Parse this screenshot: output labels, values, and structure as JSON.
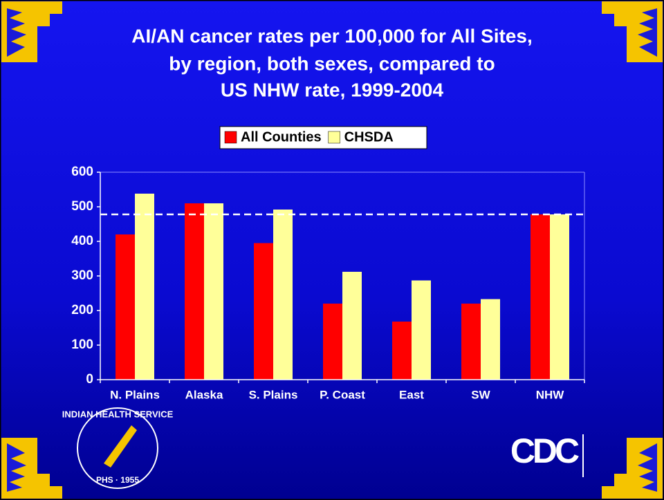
{
  "chart_data": {
    "type": "bar",
    "title": [
      "AI/AN cancer rates per 100,000 for All Sites,",
      "by region, both sexes, compared to",
      "US NHW rate, 1999-2004"
    ],
    "categories": [
      "N. Plains",
      "Alaska",
      "S. Plains",
      "P. Coast",
      "East",
      "SW",
      "NHW"
    ],
    "series": [
      {
        "name": "All Counties",
        "color": "#ff0000",
        "values": [
          420,
          510,
          395,
          220,
          168,
          220,
          478
        ]
      },
      {
        "name": "CHSDA",
        "color": "#ffff99",
        "values": [
          538,
          510,
          492,
          312,
          287,
          233,
          478
        ]
      }
    ],
    "reference_line": 478,
    "ylim": [
      0,
      600
    ],
    "yticks": [
      0,
      100,
      200,
      300,
      400,
      500,
      600
    ]
  },
  "logos": {
    "ihs": "INDIAN HEALTH SERVICE",
    "ihs_sub": "PHS · 1955",
    "cdc": "CDC"
  }
}
